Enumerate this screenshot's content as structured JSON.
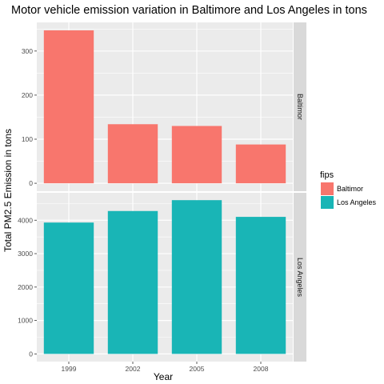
{
  "chart_data": {
    "type": "bar",
    "title": "Motor vehicle emission variation in Baltimore and Los Angeles in tons",
    "xlabel": "Year",
    "ylabel": "Total PM2.5 Emission in tons",
    "categories": [
      "1999",
      "2002",
      "2005",
      "2008"
    ],
    "facet_layout": "rows",
    "facet_strip_position": "right",
    "scales": "free_y",
    "grid": true,
    "legend": {
      "title": "fips",
      "placement": "right",
      "entries": [
        "Baltimor",
        "Los Angeles"
      ]
    },
    "series": [
      {
        "name": "Baltimor",
        "facet_label": "Baltimor",
        "color": "#F8766D",
        "values": [
          347,
          134,
          130,
          88
        ],
        "ylim": [
          -18,
          365
        ],
        "yticks": [
          0,
          100,
          200,
          300
        ]
      },
      {
        "name": "Los Angeles",
        "facet_label": "Los Angeles",
        "color": "#19B5B6",
        "values": [
          3930,
          4275,
          4600,
          4100
        ],
        "ylim": [
          -230,
          4820
        ],
        "yticks": [
          0,
          1000,
          2000,
          3000,
          4000
        ]
      }
    ],
    "colors": {
      "panel_background": "#EBEBEB",
      "grid": "#FFFFFF",
      "strip_background": "#D9D9D9"
    }
  }
}
